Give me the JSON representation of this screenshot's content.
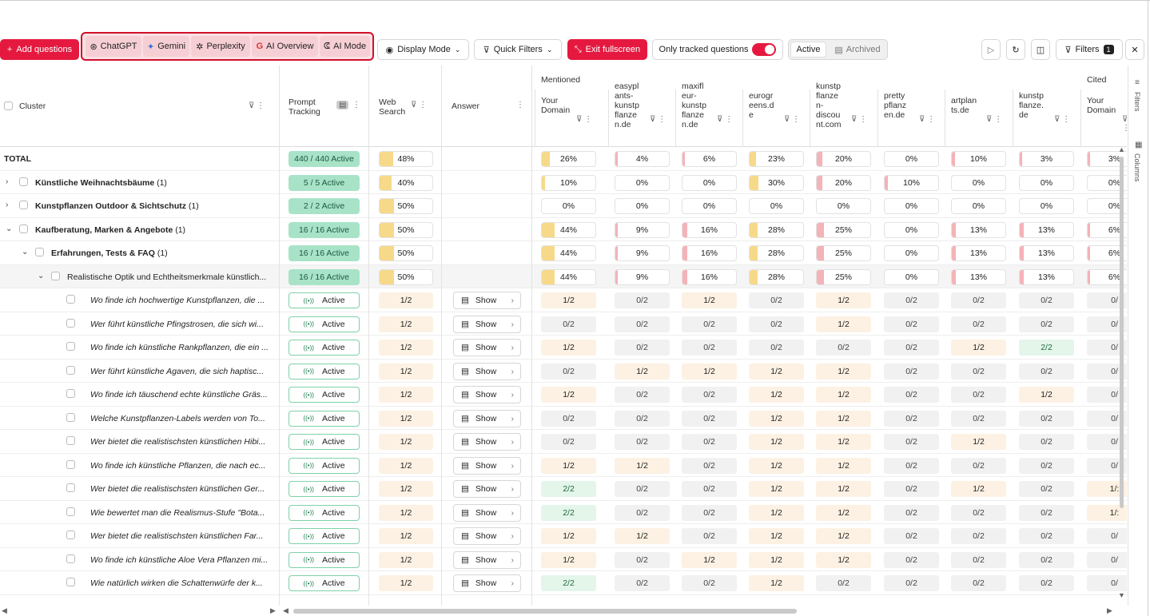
{
  "toolbar": {
    "add_questions": "Add questions",
    "llms": [
      "ChatGPT",
      "Gemini",
      "Perplexity",
      "AI Overview",
      "AI Mode"
    ],
    "display_mode": "Display Mode",
    "quick_filters": "Quick Filters",
    "exit_fullscreen": "Exit fullscreen",
    "only_tracked": "Only tracked questions",
    "only_tracked_on": true,
    "active": "Active",
    "archived": "Archived",
    "filters": "Filters",
    "filters_count": "1",
    "accent_color": "#e5193f"
  },
  "header": {
    "cluster": "Cluster",
    "prompt_tracking": [
      "Prompt",
      "Tracking"
    ],
    "web_search": [
      "Web",
      "Search"
    ],
    "answer": "Answer",
    "mentioned": "Mentioned",
    "cited": "Cited",
    "domains": [
      [
        "Your",
        "Domain"
      ],
      [
        "easypl",
        "ants-",
        "kunstp",
        "flanze",
        "n.de"
      ],
      [
        "maxifl",
        "eur-",
        "kunstp",
        "flanze",
        "n.de"
      ],
      [
        "eurogr",
        "eens.d",
        "e"
      ],
      [
        "kunstp",
        "flanze",
        "n-",
        "discou",
        "nt.com"
      ],
      [
        "pretty",
        "pflanz",
        "en.de"
      ],
      [
        "artplan",
        "ts.de"
      ],
      [
        "kunstp",
        "flanze.",
        "de"
      ],
      [
        "Your",
        "Domain"
      ]
    ]
  },
  "summary_rows": [
    {
      "label": "TOTAL",
      "count": "",
      "level": 0,
      "chevron": "",
      "pt": "440 / 440 Active",
      "web": "48%",
      "web_pct": 48,
      "cells": [
        "26%",
        "4%",
        "6%",
        "23%",
        "20%",
        "0%",
        "10%",
        "3%",
        "3%"
      ]
    },
    {
      "label": "Künstliche Weihnachtsbäume",
      "count": "(1)",
      "level": 0,
      "chevron": "›",
      "pt": "5 / 5 Active",
      "web": "40%",
      "web_pct": 40,
      "cells": [
        "10%",
        "0%",
        "0%",
        "30%",
        "20%",
        "10%",
        "0%",
        "0%",
        "0%"
      ]
    },
    {
      "label": "Kunstpflanzen Outdoor & Sichtschutz",
      "count": "(1)",
      "level": 0,
      "chevron": "›",
      "pt": "2 / 2 Active",
      "web": "50%",
      "web_pct": 50,
      "cells": [
        "0%",
        "0%",
        "0%",
        "0%",
        "0%",
        "0%",
        "0%",
        "0%",
        "0%"
      ]
    },
    {
      "label": "Kaufberatung, Marken & Angebote",
      "count": "(1)",
      "level": 0,
      "chevron": "⌄",
      "pt": "16 / 16 Active",
      "web": "50%",
      "web_pct": 50,
      "cells": [
        "44%",
        "9%",
        "16%",
        "28%",
        "25%",
        "0%",
        "13%",
        "13%",
        "6%"
      ]
    },
    {
      "label": "Erfahrungen, Tests & FAQ",
      "count": "(1)",
      "level": 1,
      "chevron": "⌄",
      "pt": "16 / 16 Active",
      "web": "50%",
      "web_pct": 50,
      "cells": [
        "44%",
        "9%",
        "16%",
        "28%",
        "25%",
        "0%",
        "13%",
        "13%",
        "6%"
      ]
    },
    {
      "label": "Realistische Optik und Echtheitsmerkmale künstlich...",
      "count": "",
      "level": 2,
      "chevron": "⌄",
      "pt": "16 / 16 Active",
      "web": "50%",
      "web_pct": 50,
      "cells": [
        "44%",
        "9%",
        "16%",
        "28%",
        "25%",
        "0%",
        "13%",
        "13%",
        "6%"
      ]
    }
  ],
  "question_rows": [
    {
      "q": "Wo finde ich hochwertige Kunstpflanzen, die ...",
      "status": "Active",
      "web": "1/2",
      "show": "Show",
      "cells": [
        "1/2",
        "0/2",
        "1/2",
        "0/2",
        "1/2",
        "0/2",
        "0/2",
        "0/2",
        "0/"
      ]
    },
    {
      "q": "Wer führt künstliche Pfingstrosen, die sich wi...",
      "status": "Active",
      "web": "1/2",
      "show": "Show",
      "cells": [
        "0/2",
        "0/2",
        "0/2",
        "0/2",
        "1/2",
        "0/2",
        "0/2",
        "0/2",
        "0/"
      ]
    },
    {
      "q": "Wo finde ich künstliche Rankpflanzen, die ein ...",
      "status": "Active",
      "web": "1/2",
      "show": "Show",
      "cells": [
        "1/2",
        "0/2",
        "0/2",
        "0/2",
        "0/2",
        "0/2",
        "1/2",
        "2/2",
        "0/"
      ]
    },
    {
      "q": "Wer führt künstliche Agaven, die sich haptisc...",
      "status": "Active",
      "web": "1/2",
      "show": "Show",
      "cells": [
        "0/2",
        "1/2",
        "1/2",
        "1/2",
        "1/2",
        "0/2",
        "0/2",
        "0/2",
        "0/"
      ]
    },
    {
      "q": "Wo finde ich täuschend echte künstliche Gräs...",
      "status": "Active",
      "web": "1/2",
      "show": "Show",
      "cells": [
        "1/2",
        "0/2",
        "0/2",
        "1/2",
        "1/2",
        "0/2",
        "0/2",
        "1/2",
        "0/"
      ]
    },
    {
      "q": "Welche Kunstpflanzen-Labels werden von To...",
      "status": "Active",
      "web": "1/2",
      "show": "Show",
      "cells": [
        "0/2",
        "0/2",
        "0/2",
        "1/2",
        "1/2",
        "0/2",
        "0/2",
        "0/2",
        "0/"
      ]
    },
    {
      "q": "Wer bietet die realistischsten künstlichen Hibi...",
      "status": "Active",
      "web": "1/2",
      "show": "Show",
      "cells": [
        "0/2",
        "0/2",
        "0/2",
        "1/2",
        "1/2",
        "0/2",
        "1/2",
        "0/2",
        "0/"
      ]
    },
    {
      "q": "Wo finde ich künstliche Pflanzen, die nach ec...",
      "status": "Active",
      "web": "1/2",
      "show": "Show",
      "cells": [
        "1/2",
        "1/2",
        "0/2",
        "1/2",
        "1/2",
        "0/2",
        "0/2",
        "0/2",
        "0/"
      ]
    },
    {
      "q": "Wer bietet die realistischsten künstlichen Ger...",
      "status": "Active",
      "web": "1/2",
      "show": "Show",
      "cells": [
        "2/2",
        "0/2",
        "0/2",
        "1/2",
        "1/2",
        "0/2",
        "1/2",
        "0/2",
        "1/:"
      ]
    },
    {
      "q": "Wie bewertet man die Realismus-Stufe \"Bota...",
      "status": "Active",
      "web": "1/2",
      "show": "Show",
      "cells": [
        "2/2",
        "0/2",
        "0/2",
        "1/2",
        "1/2",
        "0/2",
        "0/2",
        "0/2",
        "1/:"
      ]
    },
    {
      "q": "Wer bietet die realistischsten künstlichen Far...",
      "status": "Active",
      "web": "1/2",
      "show": "Show",
      "cells": [
        "1/2",
        "1/2",
        "0/2",
        "1/2",
        "1/2",
        "0/2",
        "0/2",
        "0/2",
        "0/"
      ]
    },
    {
      "q": "Wo finde ich künstliche Aloe Vera Pflanzen mi...",
      "status": "Active",
      "web": "1/2",
      "show": "Show",
      "cells": [
        "1/2",
        "0/2",
        "1/2",
        "1/2",
        "1/2",
        "0/2",
        "0/2",
        "0/2",
        "0/"
      ]
    },
    {
      "q": "Wie natürlich wirken die Schattenwürfe der k...",
      "status": "Active",
      "web": "1/2",
      "show": "Show",
      "cells": [
        "2/2",
        "0/2",
        "0/2",
        "1/2",
        "0/2",
        "0/2",
        "0/2",
        "0/2",
        "0/"
      ]
    }
  ],
  "sidebar": {
    "filters": "Filters",
    "columns": "Columns"
  }
}
